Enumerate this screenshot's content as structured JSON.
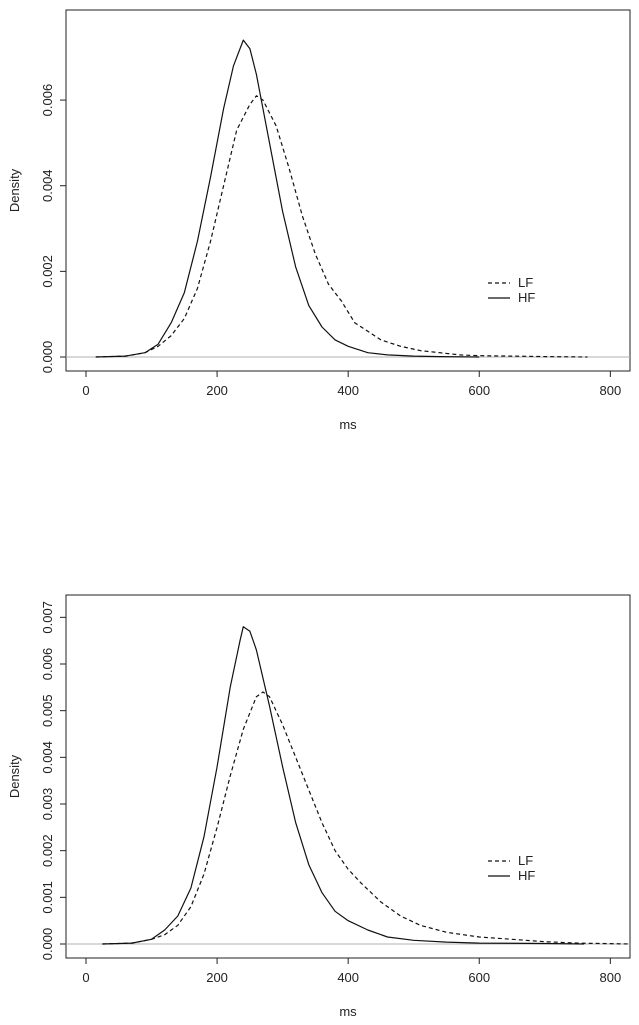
{
  "chart_data": [
    {
      "type": "line",
      "title": "",
      "xlabel": "ms",
      "ylabel": "Density",
      "xlim": [
        0,
        830
      ],
      "ylim": [
        0,
        0.0078
      ],
      "x_ticks": [
        0,
        200,
        400,
        600,
        800
      ],
      "x_tick_labels": [
        "0",
        "200",
        "400",
        "600",
        "800"
      ],
      "y_ticks": [
        0,
        0.002,
        0.004,
        0.006
      ],
      "y_tick_labels": [
        "0.000",
        "0.002",
        "0.004",
        "0.006"
      ],
      "baseline": 0,
      "grid": false,
      "legend_position": "right",
      "series": [
        {
          "name": "LF",
          "style": "dashed",
          "x": [
            15,
            60,
            90,
            110,
            130,
            150,
            170,
            190,
            210,
            230,
            250,
            260,
            270,
            290,
            310,
            330,
            350,
            370,
            390,
            410,
            430,
            450,
            480,
            510,
            540,
            570,
            600,
            650,
            700,
            765
          ],
          "y": [
            0,
            2e-05,
            0.0001,
            0.00025,
            0.0005,
            0.0009,
            0.0016,
            0.0027,
            0.004,
            0.0053,
            0.0059,
            0.0061,
            0.006,
            0.0054,
            0.0044,
            0.0033,
            0.0024,
            0.0017,
            0.0013,
            0.0008,
            0.0006,
            0.0004,
            0.00025,
            0.00015,
            0.0001,
            5e-05,
            3e-05,
            2e-05,
            1e-05,
            0
          ]
        },
        {
          "name": "HF",
          "style": "solid",
          "x": [
            15,
            60,
            90,
            110,
            130,
            150,
            170,
            190,
            210,
            225,
            240,
            250,
            260,
            280,
            300,
            320,
            340,
            360,
            380,
            400,
            430,
            460,
            500,
            540,
            600
          ],
          "y": [
            0,
            2e-05,
            0.0001,
            0.0003,
            0.0008,
            0.0015,
            0.0027,
            0.0042,
            0.0058,
            0.0068,
            0.0074,
            0.0072,
            0.0066,
            0.005,
            0.0034,
            0.0021,
            0.0012,
            0.0007,
            0.0004,
            0.00025,
            0.0001,
            5e-05,
            2e-05,
            1e-05,
            0
          ]
        }
      ]
    },
    {
      "type": "line",
      "title": "",
      "xlabel": "ms",
      "ylabel": "Density",
      "xlim": [
        0,
        830
      ],
      "ylim": [
        0,
        0.0072
      ],
      "x_ticks": [
        0,
        200,
        400,
        600,
        800
      ],
      "x_tick_labels": [
        "0",
        "200",
        "400",
        "600",
        "800"
      ],
      "y_ticks": [
        0,
        0.001,
        0.002,
        0.003,
        0.004,
        0.005,
        0.006,
        0.007
      ],
      "y_tick_labels": [
        "0.000",
        "0.001",
        "0.002",
        "0.003",
        "0.004",
        "0.005",
        "0.006",
        "0.007"
      ],
      "baseline": 0,
      "grid": false,
      "legend_position": "right",
      "series": [
        {
          "name": "LF",
          "style": "dashed",
          "x": [
            25,
            70,
            100,
            120,
            140,
            160,
            180,
            200,
            220,
            240,
            260,
            270,
            280,
            300,
            320,
            340,
            360,
            380,
            400,
            420,
            450,
            480,
            510,
            550,
            600,
            650,
            700,
            750,
            830
          ],
          "y": [
            0,
            2e-05,
            0.0001,
            0.0002,
            0.0004,
            0.0008,
            0.0015,
            0.0025,
            0.0036,
            0.0046,
            0.0053,
            0.0054,
            0.0053,
            0.0047,
            0.004,
            0.0033,
            0.0026,
            0.002,
            0.0016,
            0.0013,
            0.0009,
            0.0006,
            0.0004,
            0.00025,
            0.00015,
            0.0001,
            5e-05,
            2e-05,
            0
          ]
        },
        {
          "name": "HF",
          "style": "solid",
          "x": [
            25,
            70,
            100,
            120,
            140,
            160,
            180,
            200,
            220,
            235,
            240,
            250,
            260,
            280,
            300,
            320,
            340,
            360,
            380,
            400,
            430,
            460,
            500,
            550,
            600,
            700,
            760
          ],
          "y": [
            0,
            2e-05,
            0.0001,
            0.0003,
            0.0006,
            0.0012,
            0.0023,
            0.0038,
            0.0055,
            0.0065,
            0.0068,
            0.0067,
            0.0063,
            0.0051,
            0.0038,
            0.0026,
            0.0017,
            0.0011,
            0.0007,
            0.0005,
            0.0003,
            0.00015,
            8e-05,
            4e-05,
            2e-05,
            1e-05,
            0
          ]
        }
      ]
    }
  ]
}
